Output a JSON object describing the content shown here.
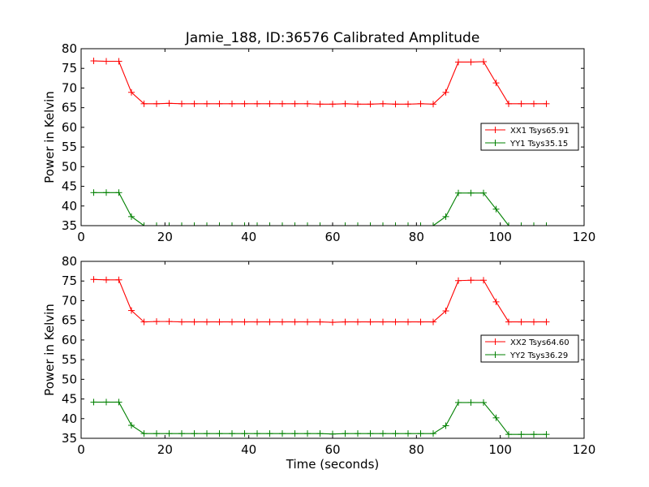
{
  "title": "Jamie_188, ID:36576 Calibrated Amplitude",
  "colors": {
    "xx": "#ff0000",
    "yy": "#008000",
    "axes": "#000000",
    "background": "#ffffff"
  },
  "chart_data": [
    {
      "type": "line",
      "title": "Jamie_188, ID:36576 Calibrated Amplitude",
      "xlabel": "",
      "ylabel": "Power in Kelvin",
      "xlim": [
        0,
        120
      ],
      "ylim": [
        35,
        80
      ],
      "xticks": [
        "0",
        "20",
        "40",
        "60",
        "80",
        "100",
        "120"
      ],
      "yticks": [
        "35",
        "40",
        "45",
        "50",
        "55",
        "60",
        "65",
        "70",
        "75",
        "80"
      ],
      "grid": false,
      "legend_position": "right",
      "x": [
        3,
        6,
        9,
        12,
        15,
        18,
        21,
        24,
        27,
        30,
        33,
        36,
        39,
        42,
        45,
        48,
        51,
        54,
        57,
        60,
        63,
        66,
        69,
        72,
        75,
        78,
        81,
        84,
        87,
        90,
        93,
        96,
        99,
        102,
        105,
        108,
        111
      ],
      "series": [
        {
          "name": "XX1 Tsys65.91",
          "color": "#ff0000",
          "values": [
            76.9,
            76.8,
            76.8,
            68.9,
            66.0,
            66.0,
            66.1,
            66.0,
            66.0,
            66.0,
            66.0,
            66.0,
            66.0,
            66.0,
            66.0,
            66.0,
            66.0,
            66.0,
            65.9,
            65.9,
            66.0,
            65.9,
            65.9,
            66.0,
            65.9,
            65.9,
            66.0,
            65.9,
            68.9,
            76.6,
            76.6,
            76.7,
            71.3,
            66.0,
            66.0,
            66.0,
            66.0
          ]
        },
        {
          "name": "YY1 Tsys35.15",
          "color": "#008000",
          "values": [
            43.4,
            43.4,
            43.4,
            37.3,
            35.0,
            35.0,
            35.0,
            35.0,
            35.0,
            35.0,
            35.0,
            35.0,
            35.0,
            35.0,
            35.0,
            35.0,
            35.0,
            35.0,
            35.0,
            35.0,
            35.0,
            35.0,
            35.0,
            35.0,
            35.0,
            35.0,
            35.0,
            35.0,
            37.3,
            43.3,
            43.3,
            43.3,
            39.2,
            35.0,
            35.0,
            35.0,
            35.0
          ]
        }
      ]
    },
    {
      "type": "line",
      "title": "",
      "xlabel": "Time (seconds)",
      "ylabel": "Power in Kelvin",
      "xlim": [
        0,
        120
      ],
      "ylim": [
        35,
        80
      ],
      "xticks": [
        "0",
        "20",
        "40",
        "60",
        "80",
        "100",
        "120"
      ],
      "yticks": [
        "35",
        "40",
        "45",
        "50",
        "55",
        "60",
        "65",
        "70",
        "75",
        "80"
      ],
      "grid": false,
      "legend_position": "right",
      "x": [
        3,
        6,
        9,
        12,
        15,
        18,
        21,
        24,
        27,
        30,
        33,
        36,
        39,
        42,
        45,
        48,
        51,
        54,
        57,
        60,
        63,
        66,
        69,
        72,
        75,
        78,
        81,
        84,
        87,
        90,
        93,
        96,
        99,
        102,
        105,
        108,
        111
      ],
      "series": [
        {
          "name": "XX2 Tsys64.60",
          "color": "#ff0000",
          "values": [
            75.4,
            75.3,
            75.3,
            67.5,
            64.6,
            64.7,
            64.7,
            64.6,
            64.6,
            64.6,
            64.6,
            64.6,
            64.6,
            64.6,
            64.6,
            64.6,
            64.6,
            64.6,
            64.6,
            64.5,
            64.6,
            64.6,
            64.6,
            64.6,
            64.6,
            64.6,
            64.6,
            64.6,
            67.4,
            75.1,
            75.2,
            75.2,
            69.7,
            64.6,
            64.6,
            64.6,
            64.6
          ]
        },
        {
          "name": "YY2 Tsys36.29",
          "color": "#008000",
          "values": [
            44.2,
            44.2,
            44.2,
            38.3,
            36.2,
            36.2,
            36.2,
            36.2,
            36.2,
            36.2,
            36.2,
            36.2,
            36.2,
            36.2,
            36.2,
            36.2,
            36.2,
            36.2,
            36.2,
            36.1,
            36.2,
            36.2,
            36.2,
            36.2,
            36.2,
            36.2,
            36.2,
            36.2,
            38.2,
            44.1,
            44.1,
            44.1,
            40.2,
            36.0,
            36.0,
            36.0,
            36.0
          ]
        }
      ]
    }
  ]
}
